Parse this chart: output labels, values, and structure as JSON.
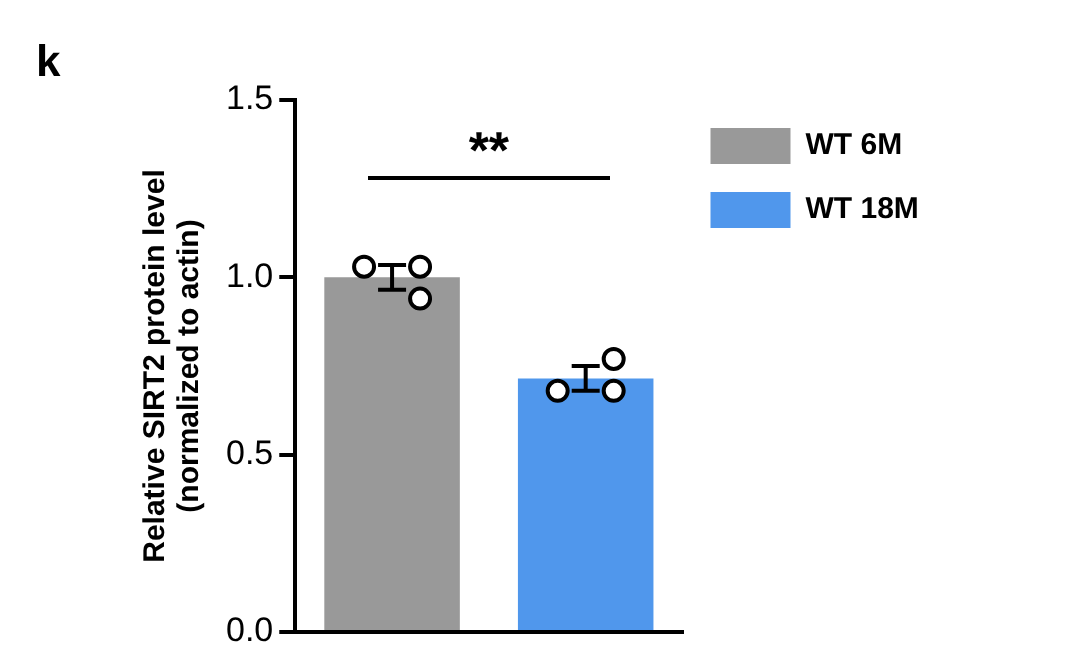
{
  "chart_data": {
    "type": "bar",
    "title": "k",
    "ylabel": "Relative SIRT2 protein level\n(normalized to actin)",
    "categories": [
      null,
      null
    ],
    "series": [
      {
        "name": "WT 6M",
        "color": "#999999",
        "values": [
          1.0,
          null
        ],
        "errors": [
          0.035,
          null
        ]
      },
      {
        "name": "WT 18M",
        "color": "#5097ec",
        "values": [
          null,
          0.715
        ],
        "errors": [
          null,
          0.035
        ]
      },
      {
        "type": "scatter",
        "color": "#000000",
        "values": [
          1.03,
          0.68
        ]
      },
      {
        "type": "scatter",
        "color": "#000000",
        "values": [
          1.03,
          0.77
        ]
      },
      {
        "type": "scatter",
        "color": "#000000",
        "values": [
          0.94,
          0.68
        ]
      }
    ],
    "ylim": [
      0,
      1.5
    ],
    "yticks": [
      {
        "value": 0,
        "label": "0.0"
      },
      0.5,
      {
        "value": 1,
        "label": "1.0"
      },
      1.5
    ],
    "annotations": [
      "**"
    ],
    "legend": "right",
    "tick_labels": "y",
    "grid": false,
    "marker": "circle"
  }
}
